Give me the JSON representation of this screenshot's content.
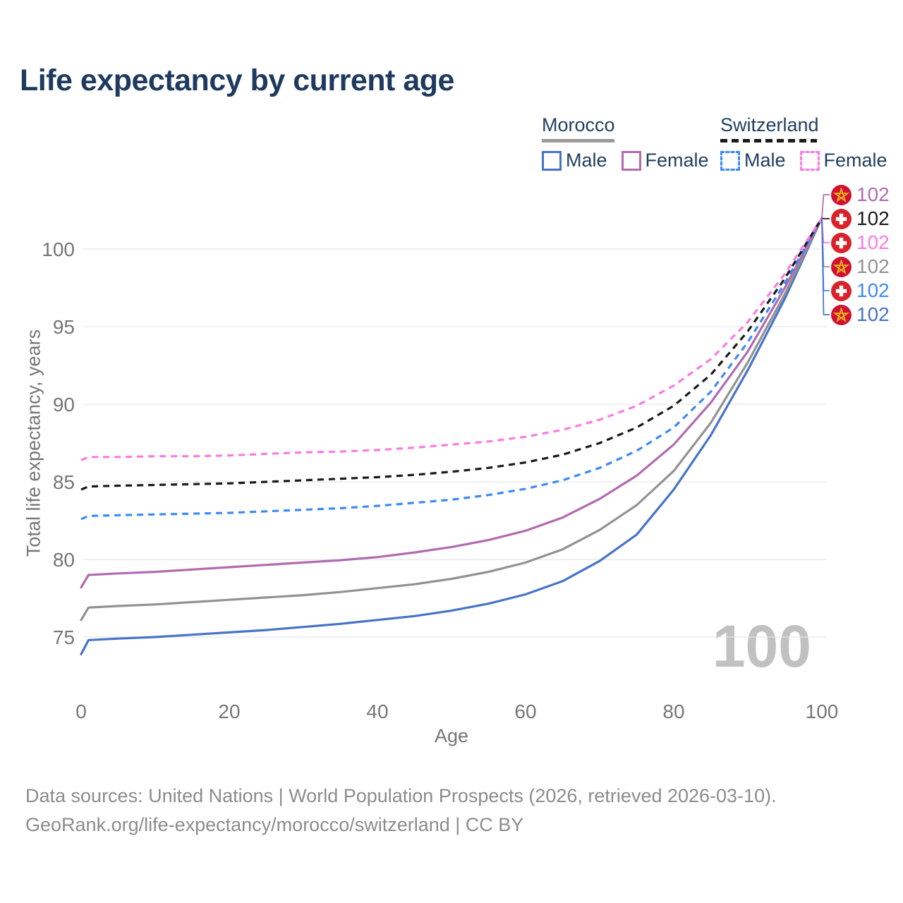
{
  "title": "Life expectancy by current age",
  "watermark": "100",
  "legend": {
    "position": "top-right",
    "groups": [
      {
        "label": "Morocco",
        "underline_style": "solid",
        "underline_color": "#9b9b9b",
        "items": [
          {
            "label": "Male",
            "color": "#4673c8",
            "dash": false
          },
          {
            "label": "Female",
            "color": "#b16bb0",
            "dash": false
          }
        ]
      },
      {
        "label": "Switzerland",
        "underline_style": "dashed",
        "underline_color": "#1a1a1a",
        "items": [
          {
            "label": "Male",
            "color": "#3b8af5",
            "dash": true
          },
          {
            "label": "Female",
            "color": "#fc7ae4",
            "dash": true
          }
        ]
      }
    ]
  },
  "chart_data": {
    "type": "line",
    "title": "Life expectancy by current age",
    "xlabel": "Age",
    "ylabel": "Total life expectancy, years",
    "xlim": [
      0,
      100
    ],
    "ylim": [
      73,
      103
    ],
    "x_ticks": [
      0,
      20,
      40,
      60,
      80,
      100
    ],
    "y_ticks": [
      75,
      80,
      85,
      90,
      95,
      100
    ],
    "grid": "horizontal",
    "legend_position": "top-right",
    "x": [
      0,
      1,
      5,
      10,
      15,
      20,
      25,
      30,
      35,
      40,
      45,
      50,
      55,
      60,
      65,
      70,
      75,
      80,
      85,
      90,
      95,
      100
    ],
    "series": [
      {
        "name": "Morocco Male",
        "country": "Morocco",
        "group": "male",
        "color": "#4673c8",
        "dash": false,
        "values": [
          73.9,
          74.8,
          74.9,
          75.0,
          75.15,
          75.3,
          75.45,
          75.65,
          75.85,
          76.1,
          76.35,
          76.7,
          77.15,
          77.75,
          78.6,
          79.9,
          81.6,
          84.5,
          88.0,
          92.2,
          96.8,
          102
        ]
      },
      {
        "name": "Morocco",
        "country": "Morocco",
        "group": "both",
        "color": "#929292",
        "dash": false,
        "values": [
          76.1,
          76.9,
          77.0,
          77.1,
          77.25,
          77.4,
          77.55,
          77.7,
          77.9,
          78.15,
          78.4,
          78.75,
          79.2,
          79.8,
          80.65,
          81.9,
          83.5,
          85.7,
          88.8,
          92.7,
          97.1,
          102
        ]
      },
      {
        "name": "Morocco Female",
        "country": "Morocco",
        "group": "female",
        "color": "#b16bb0",
        "dash": false,
        "values": [
          78.2,
          79.0,
          79.1,
          79.2,
          79.35,
          79.5,
          79.65,
          79.8,
          79.95,
          80.15,
          80.45,
          80.8,
          81.25,
          81.85,
          82.7,
          83.9,
          85.4,
          87.4,
          90.1,
          93.4,
          97.5,
          102
        ]
      },
      {
        "name": "Switzerland Male",
        "country": "Switzerland",
        "group": "male",
        "color": "#3b8af5",
        "dash": true,
        "values": [
          82.6,
          82.8,
          82.85,
          82.9,
          82.95,
          83.0,
          83.1,
          83.2,
          83.3,
          83.45,
          83.65,
          83.85,
          84.15,
          84.55,
          85.1,
          85.9,
          87.0,
          88.5,
          90.8,
          94.0,
          97.8,
          102
        ]
      },
      {
        "name": "Switzerland",
        "country": "Switzerland",
        "group": "both",
        "color": "#1a1a1a",
        "dash": true,
        "values": [
          84.5,
          84.7,
          84.75,
          84.8,
          84.85,
          84.9,
          85.0,
          85.1,
          85.2,
          85.3,
          85.45,
          85.65,
          85.9,
          86.25,
          86.75,
          87.5,
          88.5,
          89.9,
          91.9,
          94.7,
          98.1,
          102
        ]
      },
      {
        "name": "Switzerland Female",
        "country": "Switzerland",
        "group": "female",
        "color": "#fc7ae4",
        "dash": true,
        "values": [
          86.4,
          86.6,
          86.6,
          86.65,
          86.65,
          86.7,
          86.8,
          86.9,
          86.95,
          87.05,
          87.2,
          87.4,
          87.6,
          87.9,
          88.35,
          89.0,
          89.9,
          91.2,
          92.9,
          95.3,
          98.4,
          102
        ]
      }
    ],
    "end_labels": [
      {
        "series": "Morocco Female",
        "value": "102",
        "color": "#b16bb0",
        "flag": "morocco-flag-icon"
      },
      {
        "series": "Switzerland",
        "value": "102",
        "color": "#1a1a1a",
        "flag": "switzerland-flag-icon"
      },
      {
        "series": "Switzerland Female",
        "value": "102",
        "color": "#fc7ae4",
        "flag": "switzerland-flag-icon"
      },
      {
        "series": "Morocco",
        "value": "102",
        "color": "#929292",
        "flag": "morocco-flag-icon"
      },
      {
        "series": "Switzerland Male",
        "value": "102",
        "color": "#3b8af5",
        "flag": "switzerland-flag-icon"
      },
      {
        "series": "Morocco Male",
        "value": "102",
        "color": "#4673c8",
        "flag": "morocco-flag-icon"
      }
    ]
  },
  "icons": {
    "morocco_flag": "star-in-red-circle",
    "switzerland_flag": "cross-in-red-circle"
  },
  "colors": {
    "title": "#1e3a5e",
    "axis_text": "#767676",
    "grid": "#e8e8e8",
    "watermark": "#c1c1c1",
    "footer_text": "#8c8c8c",
    "morocco_flag_red": "#d21034",
    "morocco_star_gold": "#e8b71a",
    "swiss_flag_red": "#d8232a",
    "swiss_cross_white": "#ffffff"
  },
  "footer": {
    "line1": "Data sources: United Nations | World Population Prospects (2026, retrieved 2026-03-10).",
    "line2": "GeoRank.org/life-expectancy/morocco/switzerland | CC BY"
  }
}
